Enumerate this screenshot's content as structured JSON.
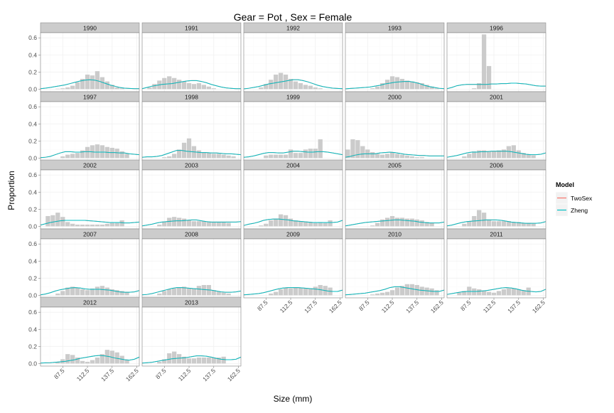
{
  "chart_data": {
    "type": "bar",
    "title": "Gear = Pot , Sex = Female",
    "xlabel": "Size (mm)",
    "ylabel": "Proportion",
    "xlim": [
      65,
      165
    ],
    "ylim": [
      -0.03,
      0.66
    ],
    "x_ticks": [
      87.5,
      112.5,
      137.5,
      162.5
    ],
    "x_tick_labels": [
      "87.5",
      "112.5",
      "137.5",
      "162.5"
    ],
    "y_ticks": [
      0,
      0.2,
      0.4,
      0.6
    ],
    "y_tick_labels": [
      "0.0",
      "0.2",
      "0.4",
      "0.6"
    ],
    "grid": true,
    "bin_centers": [
      67.5,
      72.5,
      77.5,
      82.5,
      87.5,
      92.5,
      97.5,
      102.5,
      107.5,
      112.5,
      117.5,
      122.5,
      127.5,
      132.5,
      137.5,
      142.5,
      147.5,
      152.5,
      157.5,
      162.5
    ],
    "fit_x": [
      65,
      70,
      75,
      80,
      85,
      90,
      95,
      100,
      105,
      110,
      115,
      120,
      125,
      130,
      135,
      140,
      145,
      150,
      155,
      160,
      165
    ],
    "legend": {
      "title": "Model",
      "position": "right",
      "entries": [
        {
          "name": "TwoSex",
          "color": "#f8766d"
        },
        {
          "name": "Zheng",
          "color": "#00bfc4"
        }
      ]
    },
    "panels": [
      {
        "year": "1990",
        "observed": [
          0,
          0,
          0,
          0.005,
          0.01,
          0.02,
          0.04,
          0.08,
          0.12,
          0.17,
          0.16,
          0.21,
          0.14,
          0.09,
          0.05,
          0.02,
          0.01,
          0,
          0,
          0
        ],
        "fit": [
          0.005,
          0.012,
          0.02,
          0.03,
          0.04,
          0.05,
          0.065,
          0.08,
          0.095,
          0.105,
          0.11,
          0.105,
          0.09,
          0.07,
          0.05,
          0.035,
          0.02,
          0.012,
          0.008,
          0.005,
          0.005
        ]
      },
      {
        "year": "1991",
        "observed": [
          0,
          0.02,
          0.06,
          0.1,
          0.13,
          0.15,
          0.13,
          0.11,
          0.09,
          0.07,
          0.06,
          0.07,
          0.05,
          0.03,
          0.01,
          0,
          0,
          0,
          0,
          0
        ],
        "fit": [
          0.005,
          0.02,
          0.035,
          0.045,
          0.055,
          0.06,
          0.065,
          0.075,
          0.085,
          0.095,
          0.1,
          0.1,
          0.09,
          0.075,
          0.055,
          0.04,
          0.025,
          0.015,
          0.01,
          0.005,
          0.005
        ]
      },
      {
        "year": "1992",
        "observed": [
          0,
          0,
          0,
          0.02,
          0.06,
          0.11,
          0.17,
          0.19,
          0.17,
          0.12,
          0.09,
          0.07,
          0.05,
          0.04,
          0.02,
          0.01,
          0,
          0,
          0,
          0
        ],
        "fit": [
          0.003,
          0.01,
          0.02,
          0.03,
          0.045,
          0.06,
          0.07,
          0.08,
          0.09,
          0.1,
          0.11,
          0.11,
          0.1,
          0.085,
          0.065,
          0.045,
          0.03,
          0.02,
          0.012,
          0.008,
          0.005
        ]
      },
      {
        "year": "1993",
        "observed": [
          0,
          0,
          0,
          0,
          0,
          0.01,
          0.03,
          0.07,
          0.11,
          0.15,
          0.14,
          0.12,
          0.1,
          0.09,
          0.08,
          0.07,
          0.05,
          0.03,
          0.01,
          0
        ],
        "fit": [
          0.003,
          0.008,
          0.012,
          0.016,
          0.02,
          0.025,
          0.035,
          0.045,
          0.06,
          0.07,
          0.08,
          0.085,
          0.09,
          0.09,
          0.08,
          0.065,
          0.045,
          0.03,
          0.02,
          0.01,
          0.005
        ]
      },
      {
        "year": "1996",
        "observed": [
          0,
          0,
          0,
          0,
          0,
          0.01,
          0.07,
          0.64,
          0.27,
          0,
          0,
          0,
          0,
          0,
          0,
          0,
          0,
          0,
          0,
          0
        ],
        "fit": [
          0.005,
          0.02,
          0.04,
          0.05,
          0.055,
          0.055,
          0.055,
          0.055,
          0.055,
          0.06,
          0.06,
          0.065,
          0.065,
          0.07,
          0.07,
          0.065,
          0.06,
          0.05,
          0.04,
          0.035,
          0.035
        ]
      },
      {
        "year": "1997",
        "observed": [
          0,
          0,
          0,
          0,
          0.02,
          0.04,
          0.05,
          0.06,
          0.09,
          0.13,
          0.15,
          0.16,
          0.15,
          0.13,
          0.12,
          0.11,
          0.08,
          0.05,
          0,
          0
        ],
        "fit": [
          0.005,
          0.01,
          0.02,
          0.04,
          0.06,
          0.075,
          0.075,
          0.07,
          0.07,
          0.075,
          0.075,
          0.07,
          0.07,
          0.07,
          0.065,
          0.065,
          0.06,
          0.06,
          0.05,
          0.045,
          0.04
        ]
      },
      {
        "year": "1998",
        "observed": [
          0,
          0,
          0,
          0,
          0.01,
          0.02,
          0.05,
          0.1,
          0.18,
          0.23,
          0.14,
          0.09,
          0.07,
          0.06,
          0.05,
          0.05,
          0.04,
          0.03,
          0.02,
          0
        ],
        "fit": [
          0.01,
          0.015,
          0.015,
          0.02,
          0.03,
          0.05,
          0.07,
          0.09,
          0.09,
          0.08,
          0.075,
          0.07,
          0.065,
          0.065,
          0.06,
          0.06,
          0.055,
          0.05,
          0.05,
          0.045,
          0.04
        ]
      },
      {
        "year": "1999",
        "observed": [
          0,
          0,
          0,
          0,
          0.03,
          0.04,
          0.04,
          0.04,
          0.04,
          0.1,
          0.06,
          0.06,
          0.1,
          0.11,
          0.11,
          0.22,
          0,
          0,
          0,
          0
        ],
        "fit": [
          0.01,
          0.015,
          0.025,
          0.04,
          0.055,
          0.065,
          0.065,
          0.06,
          0.06,
          0.07,
          0.08,
          0.08,
          0.075,
          0.07,
          0.07,
          0.075,
          0.075,
          0.07,
          0.06,
          0.05,
          0.04
        ]
      },
      {
        "year": "2000",
        "observed": [
          0.1,
          0.22,
          0.21,
          0.14,
          0.1,
          0.07,
          0.05,
          0.04,
          0.05,
          0.07,
          0.05,
          0.04,
          0.03,
          0.02,
          0.01,
          0.01,
          0,
          0,
          0,
          0
        ],
        "fit": [
          0.01,
          0.02,
          0.035,
          0.045,
          0.05,
          0.05,
          0.05,
          0.06,
          0.065,
          0.07,
          0.065,
          0.055,
          0.045,
          0.04,
          0.035,
          0.03,
          0.03,
          0.025,
          0.025,
          0.025,
          0.025
        ]
      },
      {
        "year": "2001",
        "observed": [
          0,
          0,
          0,
          0.02,
          0.05,
          0.08,
          0.09,
          0.09,
          0.08,
          0.08,
          0.09,
          0.1,
          0.14,
          0.15,
          0.09,
          0.06,
          0.04,
          0.03,
          0,
          0
        ],
        "fit": [
          0.01,
          0.02,
          0.03,
          0.045,
          0.06,
          0.07,
          0.07,
          0.075,
          0.075,
          0.08,
          0.08,
          0.08,
          0.08,
          0.075,
          0.065,
          0.055,
          0.045,
          0.04,
          0.04,
          0.045,
          0.06
        ]
      },
      {
        "year": "2002",
        "observed": [
          0,
          0.12,
          0.13,
          0.16,
          0.11,
          0.05,
          0.03,
          0.02,
          0.02,
          0.02,
          0.02,
          0.02,
          0.02,
          0.03,
          0.04,
          0.04,
          0.07,
          0,
          0,
          0
        ],
        "fit": [
          0.015,
          0.03,
          0.045,
          0.055,
          0.065,
          0.07,
          0.07,
          0.07,
          0.07,
          0.07,
          0.065,
          0.06,
          0.055,
          0.05,
          0.045,
          0.045,
          0.045,
          0.04,
          0.04,
          0.045,
          0.05
        ]
      },
      {
        "year": "2003",
        "observed": [
          0,
          0,
          0,
          0.02,
          0.05,
          0.1,
          0.11,
          0.1,
          0.09,
          0.07,
          0.06,
          0.06,
          0.06,
          0.05,
          0.05,
          0.05,
          0.05,
          0.04,
          0,
          0
        ],
        "fit": [
          0.005,
          0.015,
          0.025,
          0.04,
          0.05,
          0.055,
          0.06,
          0.065,
          0.065,
          0.07,
          0.075,
          0.075,
          0.065,
          0.055,
          0.05,
          0.05,
          0.05,
          0.05,
          0.05,
          0.05,
          0.055
        ]
      },
      {
        "year": "2004",
        "observed": [
          0,
          0,
          0,
          0.01,
          0.03,
          0.07,
          0.09,
          0.14,
          0.13,
          0.09,
          0.07,
          0.06,
          0.05,
          0.05,
          0.04,
          0.05,
          0.04,
          0.07,
          0,
          0
        ],
        "fit": [
          0.01,
          0.025,
          0.035,
          0.05,
          0.07,
          0.08,
          0.085,
          0.085,
          0.08,
          0.075,
          0.065,
          0.06,
          0.055,
          0.05,
          0.045,
          0.045,
          0.045,
          0.045,
          0.045,
          0.05,
          0.07
        ]
      },
      {
        "year": "2005",
        "observed": [
          0,
          0,
          0,
          0,
          0,
          0.01,
          0.04,
          0.08,
          0.1,
          0.12,
          0.1,
          0.1,
          0.09,
          0.09,
          0.08,
          0.07,
          0.05,
          0.04,
          0,
          0
        ],
        "fit": [
          0.005,
          0.015,
          0.025,
          0.035,
          0.045,
          0.05,
          0.055,
          0.06,
          0.065,
          0.07,
          0.075,
          0.075,
          0.07,
          0.065,
          0.06,
          0.05,
          0.045,
          0.04,
          0.04,
          0.04,
          0.05
        ]
      },
      {
        "year": "2006",
        "observed": [
          0,
          0,
          0,
          0.03,
          0.06,
          0.12,
          0.19,
          0.16,
          0.08,
          0.06,
          0.06,
          0.06,
          0.06,
          0.05,
          0.05,
          0.04,
          0.04,
          0.03,
          0,
          0
        ],
        "fit": [
          0.005,
          0.015,
          0.03,
          0.045,
          0.055,
          0.06,
          0.065,
          0.07,
          0.075,
          0.075,
          0.075,
          0.07,
          0.06,
          0.05,
          0.045,
          0.04,
          0.035,
          0.035,
          0.035,
          0.04,
          0.055
        ]
      },
      {
        "year": "2007",
        "observed": [
          0,
          0,
          0,
          0.02,
          0.05,
          0.09,
          0.1,
          0.09,
          0.07,
          0.06,
          0.08,
          0.1,
          0.11,
          0.09,
          0.07,
          0.06,
          0.05,
          0.04,
          0,
          0
        ],
        "fit": [
          0.005,
          0.015,
          0.03,
          0.05,
          0.065,
          0.075,
          0.085,
          0.09,
          0.085,
          0.075,
          0.07,
          0.07,
          0.07,
          0.065,
          0.06,
          0.05,
          0.04,
          0.035,
          0.035,
          0.04,
          0.055
        ]
      },
      {
        "year": "2008",
        "observed": [
          0,
          0,
          0,
          0.02,
          0.05,
          0.07,
          0.08,
          0.09,
          0.1,
          0.08,
          0.08,
          0.11,
          0.12,
          0.12,
          0.06,
          0.04,
          0.03,
          0.02,
          0,
          0
        ],
        "fit": [
          0.005,
          0.01,
          0.02,
          0.035,
          0.05,
          0.065,
          0.08,
          0.09,
          0.09,
          0.085,
          0.08,
          0.075,
          0.07,
          0.065,
          0.06,
          0.05,
          0.04,
          0.035,
          0.035,
          0.04,
          0.05
        ]
      },
      {
        "year": "2009",
        "observed": [
          0,
          0,
          0,
          0,
          0,
          0.02,
          0.04,
          0.07,
          0.09,
          0.08,
          0.09,
          0.09,
          0.08,
          0.08,
          0.1,
          0.12,
          0.11,
          0.09,
          0,
          0
        ],
        "fit": [
          0.005,
          0.01,
          0.015,
          0.02,
          0.03,
          0.045,
          0.06,
          0.075,
          0.085,
          0.09,
          0.09,
          0.09,
          0.085,
          0.08,
          0.075,
          0.07,
          0.06,
          0.05,
          0.045,
          0.045,
          0.06
        ]
      },
      {
        "year": "2010",
        "observed": [
          0,
          0,
          0,
          0,
          0,
          0.01,
          0.02,
          0.03,
          0.04,
          0.06,
          0.09,
          0.11,
          0.13,
          0.13,
          0.12,
          0.1,
          0.09,
          0.08,
          0.06,
          0
        ],
        "fit": [
          0.005,
          0.01,
          0.015,
          0.02,
          0.025,
          0.035,
          0.045,
          0.055,
          0.07,
          0.09,
          0.1,
          0.1,
          0.09,
          0.08,
          0.07,
          0.06,
          0.055,
          0.05,
          0.045,
          0.045,
          0.06
        ]
      },
      {
        "year": "2011",
        "observed": [
          0,
          0,
          0.03,
          0.05,
          0.1,
          0.08,
          0.07,
          0.05,
          0.04,
          0.03,
          0.05,
          0.07,
          0.08,
          0.08,
          0.07,
          0.06,
          0.09,
          0,
          0,
          0
        ],
        "fit": [
          0.01,
          0.02,
          0.03,
          0.04,
          0.045,
          0.045,
          0.045,
          0.05,
          0.055,
          0.065,
          0.075,
          0.085,
          0.09,
          0.085,
          0.075,
          0.06,
          0.05,
          0.045,
          0.04,
          0.045,
          0.07
        ]
      },
      {
        "year": "2012",
        "observed": [
          0,
          0,
          0,
          0.02,
          0.05,
          0.11,
          0.1,
          0.07,
          0.03,
          0.02,
          0.04,
          0.07,
          0.11,
          0.16,
          0.15,
          0.13,
          0.09,
          0.04,
          0,
          0
        ],
        "fit": [
          0.005,
          0.008,
          0.01,
          0.015,
          0.02,
          0.025,
          0.035,
          0.045,
          0.06,
          0.07,
          0.08,
          0.09,
          0.095,
          0.09,
          0.08,
          0.065,
          0.055,
          0.045,
          0.04,
          0.05,
          0.075
        ]
      },
      {
        "year": "2013",
        "observed": [
          0,
          0,
          0,
          0.02,
          0.05,
          0.12,
          0.14,
          0.11,
          0.08,
          0.06,
          0.06,
          0.07,
          0.07,
          0.07,
          0.07,
          0.07,
          0.08,
          0,
          0,
          0
        ],
        "fit": [
          0.005,
          0.01,
          0.015,
          0.025,
          0.035,
          0.045,
          0.055,
          0.06,
          0.065,
          0.07,
          0.08,
          0.09,
          0.09,
          0.085,
          0.075,
          0.06,
          0.05,
          0.045,
          0.045,
          0.05,
          0.075
        ]
      }
    ],
    "colors": {
      "bar": "#cbcbcb",
      "zheng": "#00bfc4",
      "twosex": "#f8766d",
      "strip": "#cccccc",
      "panel_border": "#7f7f7f",
      "grid_major": "#f0f0f0",
      "grid_minor": "#fafafa"
    }
  }
}
